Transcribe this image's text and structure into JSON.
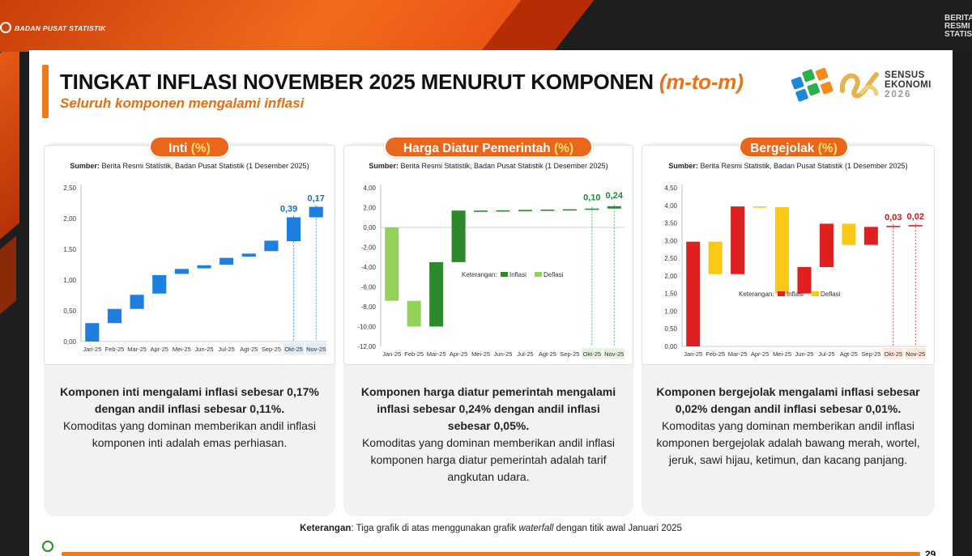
{
  "header": {
    "org_name": "BADAN PUSAT STATISTIK",
    "corner_text": "BERITA RESMI STATISTIK",
    "title": "TINGKAT INFLASI NOVEMBER 2025 MENURUT KOMPONEN",
    "title_suffix": "(m-to-m)",
    "subtitle": "Seluruh komponen mengalami inflasi",
    "sensus_line1": "SENSUS",
    "sensus_line2": "EKONOMI",
    "sensus_year": "2026"
  },
  "panels": [
    {
      "title": "Inti",
      "title_pct": "(%)",
      "source_label": "Sumber:",
      "source_text": "Berita Resmi Statistik, Badan Pusat Statistik (1 Desember 2025)",
      "desc_bold": "Komponen inti mengalami inflasi sebesar 0,17% dengan andil inflasi sebesar 0,11%.",
      "desc_text": "Komoditas yang dominan memberikan andil inflasi komponen inti adalah emas perhiasan."
    },
    {
      "title": "Harga Diatur Pemerintah",
      "title_pct": "(%)",
      "source_label": "Sumber:",
      "source_text": "Berita Resmi Statistik, Badan Pusat Statistik (1 Desember 2025)",
      "desc_bold": "Komponen harga diatur pemerintah mengalami inflasi sebesar 0,24% dengan andil inflasi sebesar 0,05%.",
      "desc_text": "Komoditas yang dominan memberikan andil inflasi komponen harga diatur pemerintah adalah tarif angkutan udara."
    },
    {
      "title": "Bergejolak",
      "title_pct": "(%)",
      "source_label": "Sumber:",
      "source_text": "Berita Resmi Statistik, Badan Pusat Statistik (1 Desember 2025)",
      "desc_bold": "Komponen bergejolak mengalami inflasi sebesar 0,02% dengan andil inflasi sebesar 0,01%.",
      "desc_text": "Komoditas yang dominan memberikan andil inflasi komponen bergejolak adalah bawang merah, wortel, jeruk, sawi hijau, ketimun, dan kacang panjang."
    }
  ],
  "footer": {
    "note_label": "Keterangan",
    "note_pre": ": Tiga grafik di atas menggunakan grafik ",
    "note_italic": "waterfall",
    "note_post": " dengan titik awal Januari 2025",
    "page_number": "29"
  },
  "chart_data": [
    {
      "type": "waterfall",
      "title": "Inti (%)",
      "categories": [
        "Jan-25",
        "Feb-25",
        "Mar-25",
        "Apr-25",
        "Mei-25",
        "Jun-25",
        "Jul-25",
        "Agt-25",
        "Sep-25",
        "Okt-25",
        "Nov-25"
      ],
      "bars": [
        {
          "start": 0.0,
          "end": 0.3
        },
        {
          "start": 0.3,
          "end": 0.53
        },
        {
          "start": 0.53,
          "end": 0.76
        },
        {
          "start": 0.78,
          "end": 1.08
        },
        {
          "start": 1.1,
          "end": 1.18
        },
        {
          "start": 1.19,
          "end": 1.24
        },
        {
          "start": 1.25,
          "end": 1.36
        },
        {
          "start": 1.38,
          "end": 1.43
        },
        {
          "start": 1.47,
          "end": 1.64
        },
        {
          "start": 1.63,
          "end": 2.02
        },
        {
          "start": 2.02,
          "end": 2.19
        }
      ],
      "data_labels": {
        "Okt-25": "0,39",
        "Nov-25": "0,17"
      },
      "highlight": [
        "Okt-25",
        "Nov-25"
      ],
      "yticks": [
        "0,00",
        "0,50",
        "1,00",
        "1,50",
        "2,00",
        "2,50"
      ],
      "ylim": [
        0,
        2.5
      ],
      "colors": {
        "inflasi": "#1f7fe0",
        "label": "#1a6fc9",
        "highlight_bg": "#ddeefa",
        "guide": "#1f7fe0"
      },
      "legend": null
    },
    {
      "type": "waterfall",
      "title": "Harga Diatur Pemerintah (%)",
      "categories": [
        "Jan-25",
        "Feb-25",
        "Mar-25",
        "Apr-25",
        "Mei-25",
        "Jun-25",
        "Jul-25",
        "Agt-25",
        "Sep-25",
        "Okt-25",
        "Nov-25"
      ],
      "bars": [
        {
          "start": 0.0,
          "end": -7.4
        },
        {
          "start": -7.4,
          "end": -10.0
        },
        {
          "start": -10.0,
          "end": -3.5
        },
        {
          "start": -3.5,
          "end": 1.7
        },
        {
          "start": 1.65,
          "end": 1.7
        },
        {
          "start": 1.68,
          "end": 1.73
        },
        {
          "start": 1.72,
          "end": 1.77
        },
        {
          "start": 1.75,
          "end": 1.8
        },
        {
          "start": 1.78,
          "end": 1.83
        },
        {
          "start": 1.8,
          "end": 1.9
        },
        {
          "start": 1.9,
          "end": 2.14
        }
      ],
      "kinds": [
        "deflasi",
        "deflasi",
        "inflasi",
        "inflasi",
        "inflasi",
        "inflasi",
        "inflasi",
        "inflasi",
        "inflasi",
        "inflasi",
        "inflasi"
      ],
      "data_labels": {
        "Okt-25": "0,10",
        "Nov-25": "0,24"
      },
      "highlight": [
        "Okt-25",
        "Nov-25"
      ],
      "yticks": [
        "4,00",
        "2,00",
        "0,00",
        "-2,00",
        "-4,00",
        "-6,00",
        "-8,00",
        "-10,00",
        "-12,00"
      ],
      "ylim": [
        -12,
        4
      ],
      "colors": {
        "inflasi": "#2c8a2c",
        "deflasi": "#93d25a",
        "label": "#1f8a3a",
        "highlight_bg": "#e7f4df",
        "guide": "#2a9a8a"
      },
      "legend": {
        "title": "Keterangan:",
        "inflasi": "Inflasi",
        "deflasi": "Deflasi"
      }
    },
    {
      "type": "waterfall",
      "title": "Bergejolak (%)",
      "categories": [
        "Jan-25",
        "Feb-25",
        "Mar-25",
        "Apr-25",
        "Mei-25",
        "Jun-25",
        "Jul-25",
        "Agt-25",
        "Sep-25",
        "Okt-25",
        "Nov-25"
      ],
      "bars": [
        {
          "start": 0.0,
          "end": 2.97
        },
        {
          "start": 2.97,
          "end": 2.05
        },
        {
          "start": 2.05,
          "end": 3.97
        },
        {
          "start": 3.97,
          "end": 3.95
        },
        {
          "start": 3.95,
          "end": 1.5
        },
        {
          "start": 1.5,
          "end": 2.25
        },
        {
          "start": 2.25,
          "end": 3.48
        },
        {
          "start": 3.48,
          "end": 2.88
        },
        {
          "start": 2.88,
          "end": 3.39
        },
        {
          "start": 3.39,
          "end": 3.42
        },
        {
          "start": 3.42,
          "end": 3.44
        }
      ],
      "kinds": [
        "inflasi",
        "deflasi",
        "inflasi",
        "deflasi",
        "deflasi",
        "inflasi",
        "inflasi",
        "deflasi",
        "inflasi",
        "inflasi",
        "inflasi"
      ],
      "data_labels": {
        "Okt-25": "0,03",
        "Nov-25": "0,02"
      },
      "highlight": [
        "Okt-25",
        "Nov-25"
      ],
      "yticks": [
        "0,00",
        "0,50",
        "1,00",
        "1,50",
        "2,00",
        "2,50",
        "3,00",
        "3,50",
        "4,00",
        "4,50"
      ],
      "ylim": [
        0,
        4.5
      ],
      "colors": {
        "inflasi": "#e02020",
        "deflasi": "#fbc815",
        "label": "#d01818",
        "highlight_bg": "#fde9dc",
        "guide": "#d03030"
      },
      "legend": {
        "title": "Keterangan:",
        "inflasi": "Inflasi",
        "deflasi": "Deflasi"
      }
    }
  ]
}
